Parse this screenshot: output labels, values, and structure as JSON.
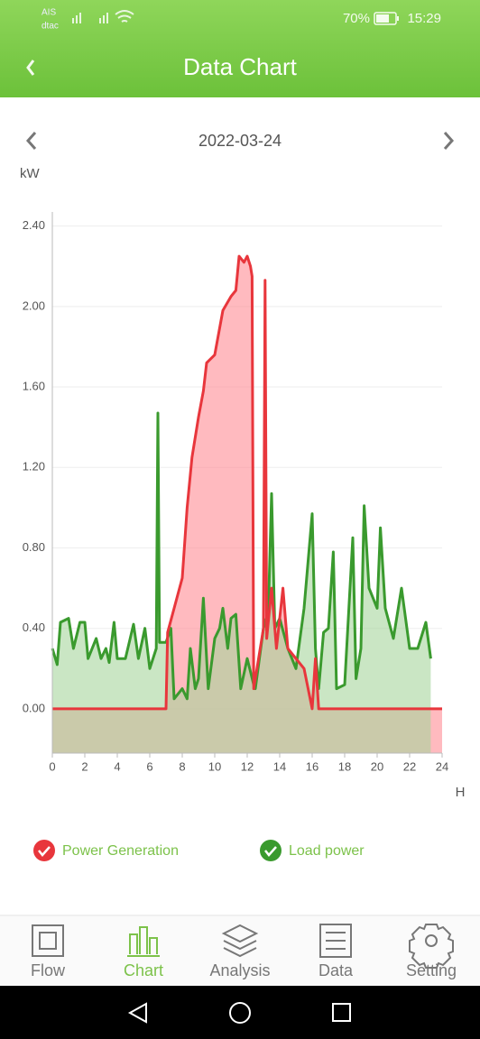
{
  "status_bar": {
    "carrier_1": "AIS",
    "carrier_2": "dtac",
    "battery": "70%",
    "time": "15:29"
  },
  "header": {
    "title": "Data Chart"
  },
  "date_nav": {
    "date": "2022-03-24"
  },
  "chart_data": {
    "type": "line",
    "y_label": "kW",
    "x_label": "H",
    "xlim": [
      0,
      24
    ],
    "xticks": [
      0,
      2,
      4,
      6,
      8,
      10,
      12,
      14,
      16,
      18,
      20,
      22,
      24
    ],
    "ylim": [
      -0.22,
      2.47
    ],
    "yticks": [
      {
        "value": 0,
        "label": "0.00"
      },
      {
        "value": 0.4,
        "label": "0.40"
      },
      {
        "value": 0.8,
        "label": "0.80"
      },
      {
        "value": 1.2,
        "label": "1.20"
      },
      {
        "value": 1.6,
        "label": "1.60"
      },
      {
        "value": 2.0,
        "label": "2.00"
      },
      {
        "value": 2.4,
        "label": "2.40"
      }
    ],
    "grid": true,
    "area": true,
    "series": [
      {
        "name": "Power Generation",
        "color": "#e8363c",
        "fill": "#ff8c95",
        "x": [
          0,
          7.0,
          7.1,
          7.5,
          8,
          8.3,
          8.6,
          9,
          9.3,
          9.5,
          10,
          10.5,
          11,
          11.3,
          11.5,
          11.8,
          12,
          12.2,
          12.3,
          12.4,
          13.0,
          13.1,
          13.2,
          13.5,
          13.8,
          14.2,
          14.5,
          15,
          15.5,
          16,
          16.2,
          16.4,
          24
        ],
        "values": [
          0,
          0,
          0.38,
          0.5,
          0.65,
          1.0,
          1.25,
          1.45,
          1.58,
          1.72,
          1.76,
          1.98,
          2.05,
          2.08,
          2.25,
          2.22,
          2.25,
          2.2,
          2.15,
          0.1,
          0.4,
          2.13,
          0.35,
          0.6,
          0.3,
          0.6,
          0.3,
          0.25,
          0.2,
          0,
          0.25,
          0,
          0
        ]
      },
      {
        "name": "Load power",
        "color": "#3a9a2e",
        "fill": "#a6d69c",
        "x": [
          0,
          0.3,
          0.5,
          1,
          1.3,
          1.7,
          2,
          2.2,
          2.7,
          3,
          3.3,
          3.5,
          3.8,
          4,
          4.5,
          5,
          5.3,
          5.7,
          6,
          6.4,
          6.5,
          6.6,
          7,
          7.3,
          7.5,
          8,
          8.3,
          8.5,
          8.8,
          9,
          9.3,
          9.6,
          10,
          10.3,
          10.5,
          10.8,
          11,
          11.3,
          11.6,
          12,
          12.4,
          12.5,
          13,
          13.3,
          13.5,
          13.7,
          14,
          14.5,
          15,
          15.5,
          16,
          16.2,
          16.4,
          16.7,
          17,
          17.3,
          17.5,
          18,
          18.5,
          18.7,
          19,
          19.2,
          19.5,
          20,
          20.2,
          20.5,
          21,
          21.5,
          22,
          22.5,
          23,
          23.3
        ],
        "values": [
          0.3,
          0.22,
          0.43,
          0.45,
          0.3,
          0.43,
          0.43,
          0.25,
          0.35,
          0.25,
          0.3,
          0.23,
          0.43,
          0.25,
          0.25,
          0.42,
          0.25,
          0.4,
          0.2,
          0.3,
          1.47,
          0.33,
          0.33,
          0.4,
          0.05,
          0.1,
          0.05,
          0.3,
          0.1,
          0.15,
          0.55,
          0.1,
          0.35,
          0.4,
          0.5,
          0.3,
          0.45,
          0.47,
          0.1,
          0.25,
          0.12,
          0.1,
          0.4,
          0.48,
          1.07,
          0.4,
          0.45,
          0.3,
          0.2,
          0.5,
          0.97,
          0.3,
          0.1,
          0.38,
          0.4,
          0.78,
          0.1,
          0.12,
          0.85,
          0.15,
          0.3,
          1.01,
          0.6,
          0.5,
          0.9,
          0.5,
          0.35,
          0.6,
          0.3,
          0.3,
          0.43,
          0.25
        ]
      }
    ]
  },
  "nav": {
    "tabs": [
      "Flow",
      "Chart",
      "Analysis",
      "Data",
      "Setting"
    ],
    "active": 1
  }
}
